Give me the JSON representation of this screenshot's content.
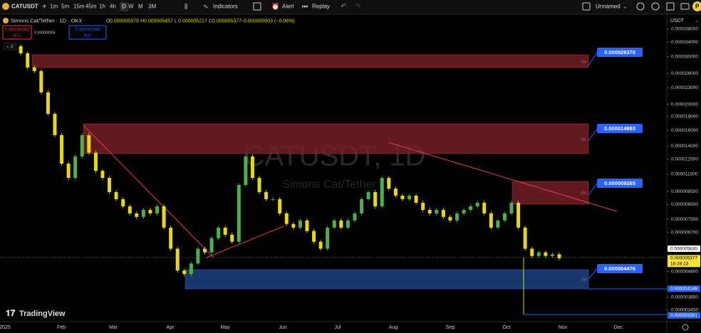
{
  "toolbar": {
    "symbol": "CATUSDT",
    "intervals": [
      "1m",
      "5m",
      "15m",
      "45m",
      "1h",
      "4h",
      "D",
      "W",
      "M",
      "3M"
    ],
    "indicators": "Indicators",
    "alert": "Alert",
    "replay": "Replay",
    "layout": "Unnamed",
    "avatar": "P"
  },
  "legend": {
    "title": "Simons Cat/Tether · 1D · OKX",
    "ohlc": [
      {
        "key": "O",
        "value": "0.000005379"
      },
      {
        "key": "H",
        "value": "0.000005457"
      },
      {
        "key": "L",
        "value": "0.000005217"
      },
      {
        "key": "C",
        "value": "0.000005377"
      }
    ],
    "change": "−0.000000003 (−0.06%)",
    "indicator_count": "2"
  },
  "trade": {
    "sell_price": "0.000005382",
    "sell": "SELL",
    "spread": "0.000000004",
    "buy_price": "0.000005386",
    "buy": "BUY"
  },
  "watermark": {
    "symbol": "CATUSDT, 1D",
    "name": "Simons Cat/Tether"
  },
  "zones": [
    {
      "label": "0.000028370",
      "tag": "d s"
    },
    {
      "label": "0.000014883",
      "tag": "d s"
    },
    {
      "label": "0.000009265",
      "tag": "d s"
    },
    {
      "label": "0.000004476",
      "tag": "d d"
    }
  ],
  "chart": {
    "log_scale": true,
    "ylim": [
      3.13e-06,
      4.26e-05
    ],
    "up_color": "#4caf50",
    "down_color": "#e6d819",
    "closes": [
      3.344e-05,
      3.283e-05,
      3.089e-05,
      2.737e-05,
      2.655e-05,
      2.213e-05,
      1.844e-05,
      1.537e-05,
      1.205e-05,
      1.067e-05,
      1.281e-05,
      1.537e-05,
      1.323e-05,
      1.133e-05,
      1.067e-05,
      9.45e-06,
      8.9e-06,
      8.37e-06,
      7.88e-06,
      7.65e-06,
      8.12e-06,
      7.88e-06,
      8.37e-06,
      6.98e-06,
      5.83e-06,
      4.84e-06,
      4.7e-06,
      5.14e-06,
      5.83e-06,
      5.65e-06,
      6.38e-06,
      6.98e-06,
      6.57e-06,
      6.19e-06,
      1.004e-05,
      1.281e-05,
      1.067e-05,
      9.45e-06,
      8.9e-06,
      8.9e-06,
      7.88e-06,
      7.2e-06,
      6.98e-06,
      7.42e-06,
      6.78e-06,
      6.19e-06,
      5.83e-06,
      6.98e-06,
      7.42e-06,
      6.98e-06,
      7.42e-06,
      7.88e-06,
      8.9e-06,
      9.45e-06,
      8.37e-06,
      1.067e-05,
      9.74e-06,
      9.17e-06,
      8.9e-06,
      9.17e-06,
      8.63e-06,
      8.12e-06,
      7.88e-06,
      8.12e-06,
      7.65e-06,
      7.42e-06,
      7.88e-06,
      8.12e-06,
      8.37e-06,
      8.63e-06,
      7.88e-06,
      6.98e-06,
      7.42e-06,
      7.88e-06,
      8.63e-06,
      6.98e-06,
      5.83e-06,
      5.48e-06,
      5.65e-06,
      5.48e-06,
      5.56e-06,
      5.377e-06
    ]
  },
  "price_axis": {
    "currency": "USDT",
    "ticks": [
      {
        "value": 3.8e-05,
        "label": "0.000038000"
      },
      {
        "value": 3.4e-05,
        "label": "0.000034000"
      },
      {
        "value": 3e-05,
        "label": "0.000030000"
      },
      {
        "value": 2.6e-05,
        "label": "0.000026000"
      },
      {
        "value": 2.3e-05,
        "label": "0.000023000"
      },
      {
        "value": 2e-05,
        "label": "0.000020000"
      },
      {
        "value": 1.8e-05,
        "label": "0.000018000"
      },
      {
        "value": 1.6e-05,
        "label": "0.000016000"
      },
      {
        "value": 1.4e-05,
        "label": "0.000014000"
      },
      {
        "value": 1.25e-05,
        "label": "0.000012500"
      },
      {
        "value": 1.1e-05,
        "label": "0.000011000"
      },
      {
        "value": 9.5e-06,
        "label": "0.000009500"
      },
      {
        "value": 8.5e-06,
        "label": "0.000008500"
      },
      {
        "value": 7.5e-06,
        "label": "0.000007500"
      },
      {
        "value": 6.7e-06,
        "label": "0.000006700"
      },
      {
        "value": 4.8e-06,
        "label": "0.000004800"
      },
      {
        "value": 3.85e-06,
        "label": "0.000003850"
      },
      {
        "value": 3.45e-06,
        "label": "0.000003450"
      }
    ],
    "markers": [
      {
        "value": 5.83e-06,
        "label": "0.000005830",
        "color": "#ffffff",
        "text_color": "#000000"
      },
      {
        "value": 5.377e-06,
        "label": "0.000005377",
        "color": "#f5e33b",
        "text_color": "#000000",
        "extra": "16:28:13"
      },
      {
        "value": 4.146e-06,
        "label": "0.000004146",
        "color": "#2962ff",
        "text_color": "#ffffff"
      },
      {
        "value": 3.301e-06,
        "label": "0.000003301",
        "color": "#2962ff",
        "text_color": "#ffffff"
      }
    ]
  },
  "time_axis": [
    "2025",
    "Feb",
    "Mar",
    "Apr",
    "May",
    "Jun",
    "Jul",
    "Aug",
    "Sep",
    "Oct",
    "Nov",
    "Dec"
  ],
  "brand": "TradingView"
}
